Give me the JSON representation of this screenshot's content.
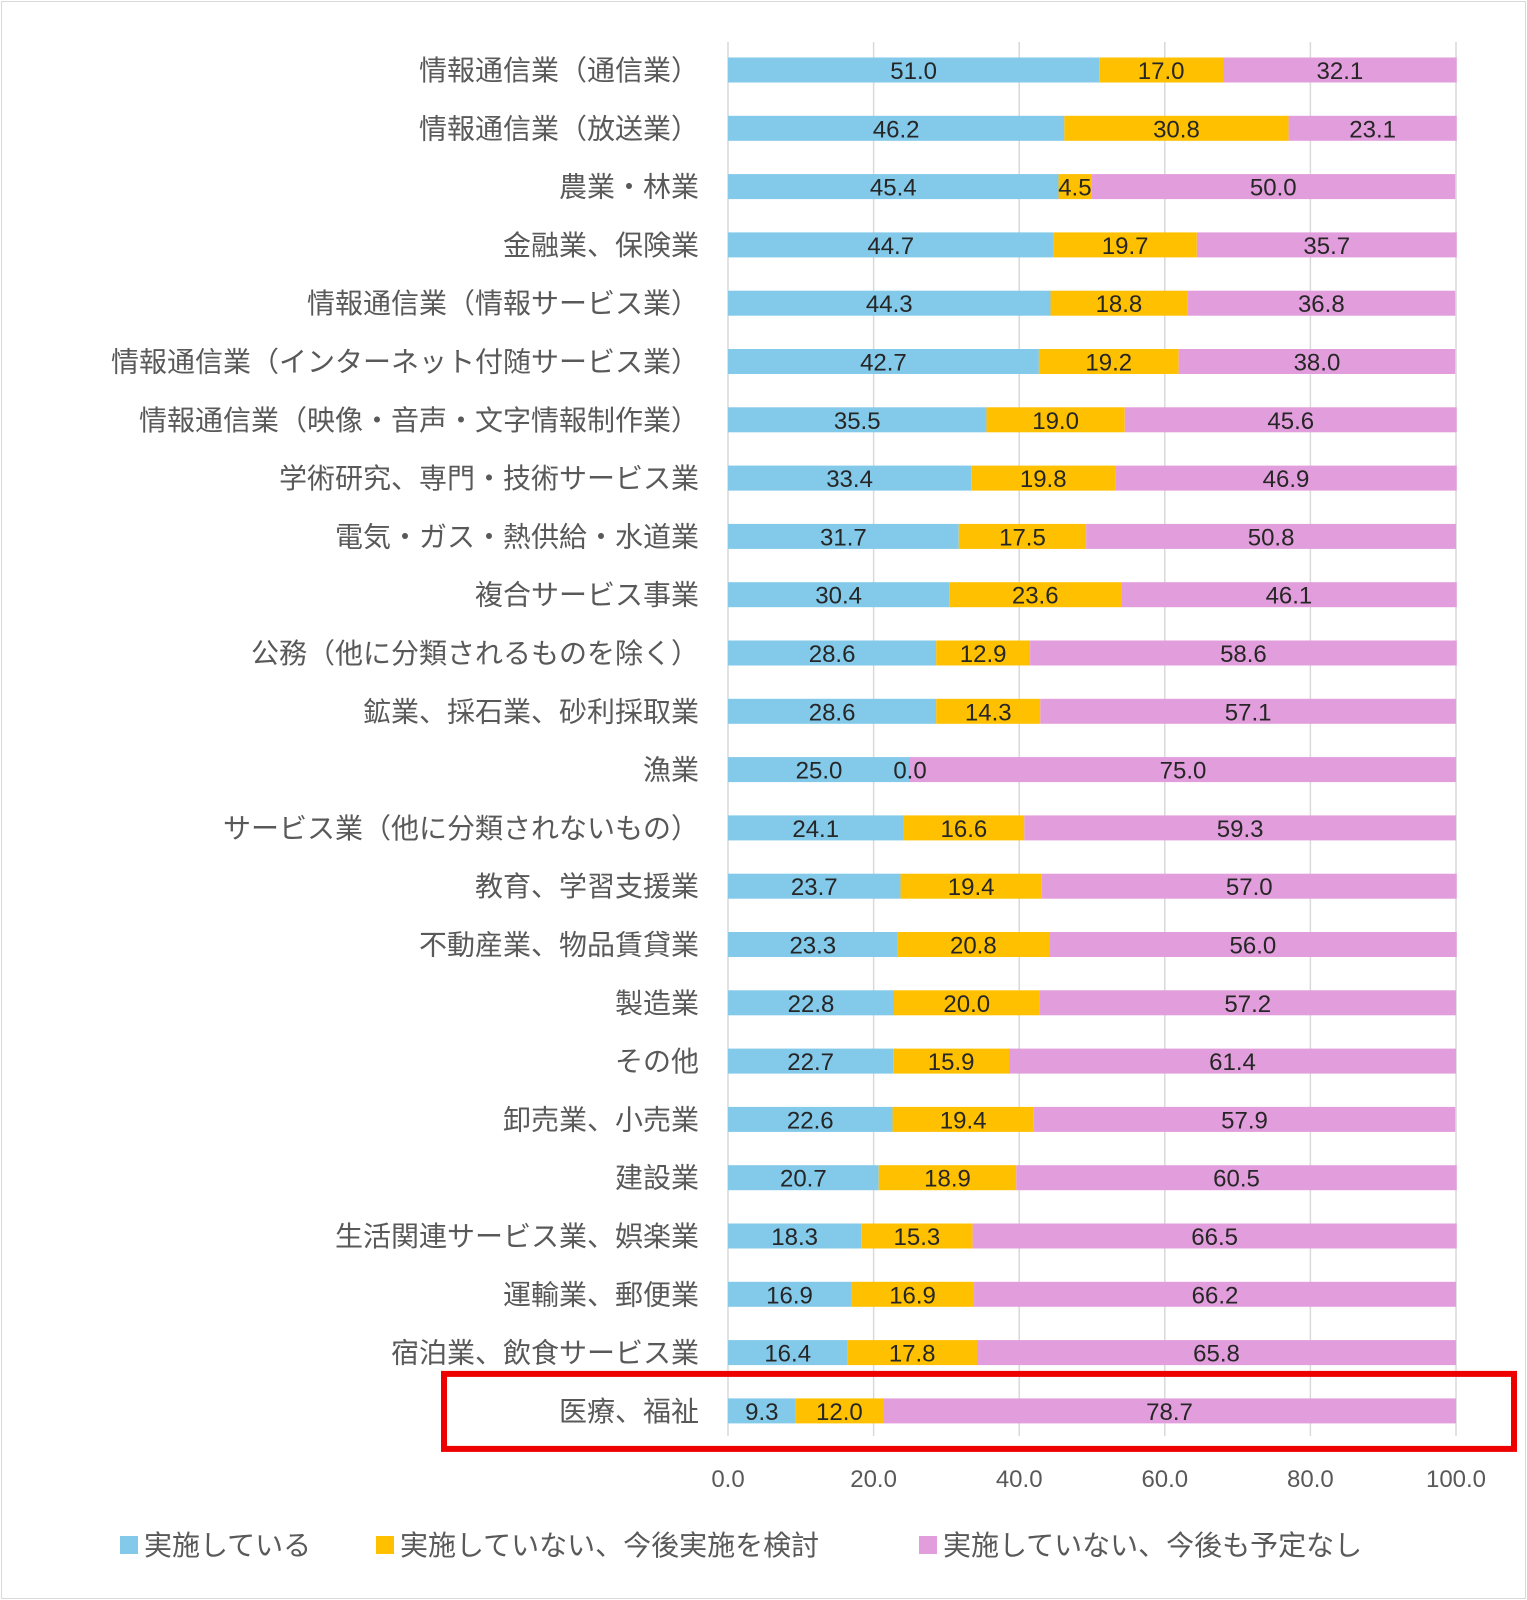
{
  "chart_data": {
    "type": "bar",
    "orientation": "horizontal",
    "stacked": true,
    "xlim": [
      0,
      100
    ],
    "xticks": [
      "0.0",
      "20.0",
      "40.0",
      "60.0",
      "80.0",
      "100.0"
    ],
    "grid": true,
    "legend_position": "bottom",
    "highlight_category": "医療、福祉",
    "highlight_color": "#ee0000",
    "categories": [
      "情報通信業（通信業）",
      "情報通信業（放送業）",
      "農業・林業",
      "金融業、保険業",
      "情報通信業（情報サービス業）",
      "情報通信業（インターネット付随サービス業）",
      "情報通信業（映像・音声・文字情報制作業）",
      "学術研究、専門・技術サービス業",
      "電気・ガス・熱供給・水道業",
      "複合サービス事業",
      "公務（他に分類されるものを除く）",
      "鉱業、採石業、砂利採取業",
      "漁業",
      "サービス業（他に分類されないもの）",
      "教育、学習支援業",
      "不動産業、物品賃貸業",
      "製造業",
      "その他",
      "卸売業、小売業",
      "建設業",
      "生活関連サービス業、娯楽業",
      "運輸業、郵便業",
      "宿泊業、飲食サービス業",
      "医療、福祉"
    ],
    "series": [
      {
        "name": "実施している",
        "color": "#82c9ea",
        "values": [
          51.0,
          46.2,
          45.4,
          44.7,
          44.3,
          42.7,
          35.5,
          33.4,
          31.7,
          30.4,
          28.6,
          28.6,
          25.0,
          24.1,
          23.7,
          23.3,
          22.8,
          22.7,
          22.6,
          20.7,
          18.3,
          16.9,
          16.4,
          9.3
        ]
      },
      {
        "name": "実施していない、今後実施を検討",
        "color": "#ffc000",
        "values": [
          17.0,
          30.8,
          4.5,
          19.7,
          18.8,
          19.2,
          19.0,
          19.8,
          17.5,
          23.6,
          12.9,
          14.3,
          0.0,
          16.6,
          19.4,
          20.8,
          20.0,
          15.9,
          19.4,
          18.9,
          15.3,
          16.9,
          17.8,
          12.0
        ]
      },
      {
        "name": "実施していない、今後も予定なし",
        "color": "#e29ddc",
        "values": [
          32.1,
          23.1,
          50.0,
          35.7,
          36.8,
          38.0,
          45.6,
          46.9,
          50.8,
          46.1,
          58.6,
          57.1,
          75.0,
          59.3,
          57.0,
          56.0,
          57.2,
          61.4,
          57.9,
          60.5,
          66.5,
          66.2,
          65.8,
          78.7
        ]
      }
    ]
  }
}
